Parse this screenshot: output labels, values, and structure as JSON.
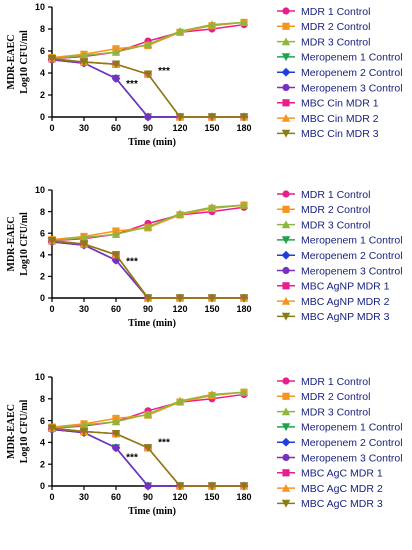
{
  "chart_data": [
    {
      "type": "line",
      "ylabel_top": "MDR-EAEC",
      "ylabel_bottom": "Log10 CFU/ml",
      "xlabel": "Time (min)",
      "x": [
        0,
        30,
        60,
        90,
        120,
        150,
        180
      ],
      "xticks": [
        "0",
        "30",
        "60",
        "90",
        "120",
        "150",
        "180"
      ],
      "yticks": [
        "0",
        "2",
        "4",
        "6",
        "8",
        "10"
      ],
      "ylim": [
        0,
        10
      ],
      "annotations": [
        {
          "text": "***",
          "x": 75,
          "y": 3.0
        },
        {
          "text": "***",
          "x": 105,
          "y": 4.2
        }
      ],
      "series": [
        {
          "name": "MDR 1 Control",
          "color": "#e91e8c",
          "marker": "circle",
          "values": [
            5.3,
            5.5,
            5.9,
            6.9,
            7.7,
            8.0,
            8.4
          ]
        },
        {
          "name": "MDR 2 Control",
          "color": "#f7941d",
          "marker": "square",
          "values": [
            5.4,
            5.7,
            6.2,
            6.5,
            7.7,
            8.3,
            8.6
          ]
        },
        {
          "name": "MDR 3 Control",
          "color": "#8db63c",
          "marker": "triangle-up",
          "values": [
            5.3,
            5.6,
            5.9,
            6.6,
            7.8,
            8.4,
            8.6
          ]
        },
        {
          "name": "Meropenem 1 Control",
          "color": "#1ea34c",
          "marker": "triangle-down",
          "values": [
            5.2,
            4.9,
            3.5,
            0,
            0,
            0,
            0
          ]
        },
        {
          "name": "Meropenem 2 Control",
          "color": "#1f3fd6",
          "marker": "diamond",
          "values": [
            5.2,
            4.9,
            3.5,
            0,
            0,
            0,
            0
          ]
        },
        {
          "name": "Meropenem 3 Control",
          "color": "#7b2fbf",
          "marker": "circle",
          "values": [
            5.2,
            4.9,
            3.5,
            0,
            0,
            0,
            0
          ]
        },
        {
          "name": "MBC Cin  MDR 1",
          "color": "#e91e8c",
          "marker": "square",
          "values": [
            5.3,
            5.0,
            4.8,
            3.9,
            0,
            0,
            0
          ]
        },
        {
          "name": "MBC Cin  MDR 2",
          "color": "#f7941d",
          "marker": "triangle-up",
          "values": [
            5.3,
            5.0,
            4.8,
            3.9,
            0,
            0,
            0
          ]
        },
        {
          "name": "MBC Cin  MDR 3",
          "color": "#8a7b14",
          "marker": "triangle-down",
          "values": [
            5.3,
            5.0,
            4.8,
            3.9,
            0,
            0,
            0
          ]
        }
      ]
    },
    {
      "type": "line",
      "ylabel_top": "MDR-EAEC",
      "ylabel_bottom": "Log10 CFU/ml",
      "xlabel": "Time (min)",
      "x": [
        0,
        30,
        60,
        90,
        120,
        150,
        180
      ],
      "xticks": [
        "0",
        "30",
        "60",
        "90",
        "120",
        "150",
        "180"
      ],
      "yticks": [
        "0",
        "2",
        "4",
        "6",
        "8",
        "10"
      ],
      "ylim": [
        0,
        10
      ],
      "annotations": [
        {
          "text": "***",
          "x": 75,
          "y": 3.4
        }
      ],
      "series": [
        {
          "name": "MDR 1 Control",
          "color": "#e91e8c",
          "marker": "circle",
          "values": [
            5.3,
            5.5,
            5.9,
            6.9,
            7.7,
            8.0,
            8.4
          ]
        },
        {
          "name": "MDR 2 Control",
          "color": "#f7941d",
          "marker": "square",
          "values": [
            5.4,
            5.7,
            6.2,
            6.5,
            7.7,
            8.3,
            8.6
          ]
        },
        {
          "name": "MDR 3 Control",
          "color": "#8db63c",
          "marker": "triangle-up",
          "values": [
            5.3,
            5.6,
            5.9,
            6.6,
            7.8,
            8.4,
            8.6
          ]
        },
        {
          "name": "Meropenem 1 Control",
          "color": "#1ea34c",
          "marker": "triangle-down",
          "values": [
            5.2,
            4.9,
            3.5,
            0,
            0,
            0,
            0
          ]
        },
        {
          "name": "Meropenem 2 Control",
          "color": "#1f3fd6",
          "marker": "diamond",
          "values": [
            5.2,
            4.9,
            3.5,
            0,
            0,
            0,
            0
          ]
        },
        {
          "name": "Meropenem 3 Control",
          "color": "#7b2fbf",
          "marker": "circle",
          "values": [
            5.2,
            4.9,
            3.5,
            0,
            0,
            0,
            0
          ]
        },
        {
          "name": "MBC AgNP  MDR 1",
          "color": "#e91e8c",
          "marker": "square",
          "values": [
            5.3,
            5.0,
            4.0,
            0,
            0,
            0,
            0
          ]
        },
        {
          "name": "MBC AgNP MDR 2",
          "color": "#f7941d",
          "marker": "triangle-up",
          "values": [
            5.3,
            5.0,
            4.0,
            0,
            0,
            0,
            0
          ]
        },
        {
          "name": "MBC AgNP MDR 3",
          "color": "#8a7b14",
          "marker": "triangle-down",
          "values": [
            5.3,
            5.0,
            4.0,
            0,
            0,
            0,
            0
          ]
        }
      ]
    },
    {
      "type": "line",
      "ylabel_top": "MDR-EAEC",
      "ylabel_bottom": "Log10 CFU/ml",
      "xlabel": "Time (min)",
      "x": [
        0,
        30,
        60,
        90,
        120,
        150,
        180
      ],
      "xticks": [
        "0",
        "30",
        "60",
        "90",
        "120",
        "150",
        "180"
      ],
      "yticks": [
        "0",
        "2",
        "4",
        "6",
        "8",
        "10"
      ],
      "ylim": [
        0,
        10
      ],
      "annotations": [
        {
          "text": "***",
          "x": 75,
          "y": 2.6
        },
        {
          "text": "***",
          "x": 105,
          "y": 4.0
        }
      ],
      "series": [
        {
          "name": "MDR 1 Control",
          "color": "#e91e8c",
          "marker": "circle",
          "values": [
            5.3,
            5.5,
            5.9,
            6.9,
            7.7,
            8.0,
            8.4
          ]
        },
        {
          "name": "MDR 2 Control",
          "color": "#f7941d",
          "marker": "square",
          "values": [
            5.4,
            5.7,
            6.2,
            6.5,
            7.7,
            8.3,
            8.6
          ]
        },
        {
          "name": "MDR 3 Control",
          "color": "#8db63c",
          "marker": "triangle-up",
          "values": [
            5.3,
            5.6,
            5.9,
            6.6,
            7.8,
            8.4,
            8.6
          ]
        },
        {
          "name": "Meropenem 1 Control",
          "color": "#1ea34c",
          "marker": "triangle-down",
          "values": [
            5.2,
            4.9,
            3.5,
            0,
            0,
            0,
            0
          ]
        },
        {
          "name": "Meropenem 2 Control",
          "color": "#1f3fd6",
          "marker": "diamond",
          "values": [
            5.2,
            4.9,
            3.5,
            0,
            0,
            0,
            0
          ]
        },
        {
          "name": "Meropenem 3 Control",
          "color": "#7b2fbf",
          "marker": "circle",
          "values": [
            5.2,
            4.9,
            3.5,
            0,
            0,
            0,
            0
          ]
        },
        {
          "name": "MBC AgC MDR 1",
          "color": "#e91e8c",
          "marker": "square",
          "values": [
            5.3,
            5.0,
            4.8,
            3.5,
            0,
            0,
            0
          ]
        },
        {
          "name": "MBC AgC MDR 2",
          "color": "#f7941d",
          "marker": "triangle-up",
          "values": [
            5.3,
            5.0,
            4.8,
            3.5,
            0,
            0,
            0
          ]
        },
        {
          "name": "MBC AgC MDR 3",
          "color": "#8a7b14",
          "marker": "triangle-down",
          "values": [
            5.3,
            5.0,
            4.8,
            3.5,
            0,
            0,
            0
          ]
        }
      ]
    }
  ]
}
